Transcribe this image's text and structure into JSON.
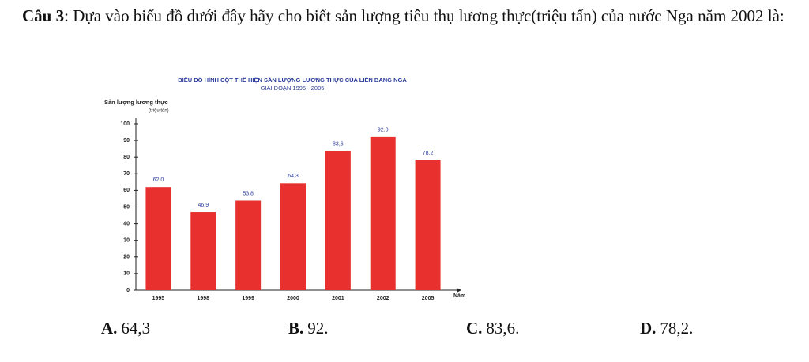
{
  "question": {
    "label": "Câu 3",
    "text": ": Dựa vào biểu đồ dưới đây hãy cho biết sản lượng tiêu thụ lương thực(triệu tấn) của nước Nga năm 2002 là:"
  },
  "chart_data": {
    "type": "bar",
    "title": "BIỂU ĐỒ HÌNH CỘT THỂ HIỆN SẢN LƯỢNG LƯƠNG THỰC CỦA LIÊN BANG NGA",
    "subtitle": "GIAI ĐOẠN 1995 - 2005",
    "ylabel": "Sản lượng lương thực",
    "yunit": "(triệu tấn)",
    "xlabel": "Năm",
    "categories": [
      "1995",
      "1998",
      "1999",
      "2000",
      "2001",
      "2002",
      "2005"
    ],
    "values": [
      62.0,
      46.9,
      53.8,
      64.3,
      83.6,
      92.0,
      78.2
    ],
    "value_labels": [
      "62.0",
      "46.9",
      "53.8",
      "64,3",
      "83,6",
      "92.0",
      "78.2"
    ],
    "color": "#e8312f",
    "ylim": [
      0,
      100
    ],
    "yticks": [
      0,
      10,
      20,
      30,
      40,
      50,
      60,
      70,
      80,
      90,
      100
    ]
  },
  "options": [
    {
      "letter": "A.",
      "text": "64,3"
    },
    {
      "letter": "B.",
      "text": "92."
    },
    {
      "letter": "C.",
      "text": "83,6."
    },
    {
      "letter": "D.",
      "text": "78,2."
    }
  ]
}
